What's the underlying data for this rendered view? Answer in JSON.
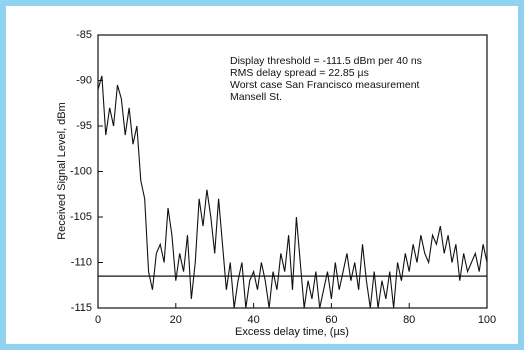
{
  "chart_data": {
    "type": "line",
    "y_label": "Received Signal Level, dBm",
    "x_label": "Excess delay time, (µs)",
    "annotations": [
      "Display threshold = -111.5 dBm per 40 ns",
      "RMS delay spread = 22.85 µs",
      "Worst case San Francisco measurement",
      "Mansell St."
    ],
    "threshold": -111.5,
    "x": [
      0,
      1,
      2,
      3,
      4,
      5,
      6,
      7,
      8,
      9,
      10,
      11,
      12,
      13,
      14,
      15,
      16,
      17,
      18,
      19,
      20,
      21,
      22,
      23,
      24,
      25,
      26,
      27,
      28,
      29,
      30,
      31,
      32,
      33,
      34,
      35,
      36,
      37,
      38,
      39,
      40,
      41,
      42,
      43,
      44,
      45,
      46,
      47,
      48,
      49,
      50,
      51,
      52,
      53,
      54,
      55,
      56,
      57,
      58,
      59,
      60,
      61,
      62,
      63,
      64,
      65,
      66,
      67,
      68,
      69,
      70,
      71,
      72,
      73,
      74,
      75,
      76,
      77,
      78,
      79,
      80,
      81,
      82,
      83,
      84,
      85,
      86,
      87,
      88,
      89,
      90,
      91,
      92,
      93,
      94,
      95,
      96,
      97,
      98,
      99,
      100
    ],
    "series": [
      {
        "color": "#111111",
        "values": [
          -91,
          -89.5,
          -96,
          -93,
          -95,
          -90.5,
          -92,
          -96,
          -93,
          -97,
          -95,
          -101,
          -103,
          -111,
          -113,
          -109,
          -108,
          -110,
          -104,
          -107,
          -112,
          -109,
          -111,
          -107,
          -114,
          -110,
          -103,
          -106,
          -102,
          -105,
          -109,
          -103,
          -108,
          -113,
          -110,
          -115,
          -112,
          -110,
          -115,
          -112,
          -111,
          -113,
          -110,
          -112,
          -115,
          -111,
          -113,
          -109,
          -111,
          -107,
          -113,
          -105,
          -110,
          -115,
          -112,
          -114,
          -111,
          -115,
          -113,
          -111,
          -114,
          -110,
          -113,
          -111,
          -109,
          -112,
          -110,
          -113,
          -108,
          -112,
          -115,
          -111,
          -115,
          -112,
          -114,
          -111,
          -115,
          -110,
          -112,
          -109,
          -111,
          -108,
          -110,
          -107,
          -109,
          -110,
          -107,
          -108,
          -106,
          -109,
          -107,
          -110,
          -108,
          -112,
          -109,
          -111,
          -110,
          -109,
          -111,
          -108,
          -110
        ]
      }
    ],
    "xlim": [
      0,
      100
    ],
    "ylim": [
      -115,
      -85
    ],
    "xticks": [
      0,
      20,
      40,
      60,
      80,
      100
    ],
    "yticks": [
      -85,
      -90,
      -95,
      -100,
      -105,
      -110,
      -115
    ]
  }
}
